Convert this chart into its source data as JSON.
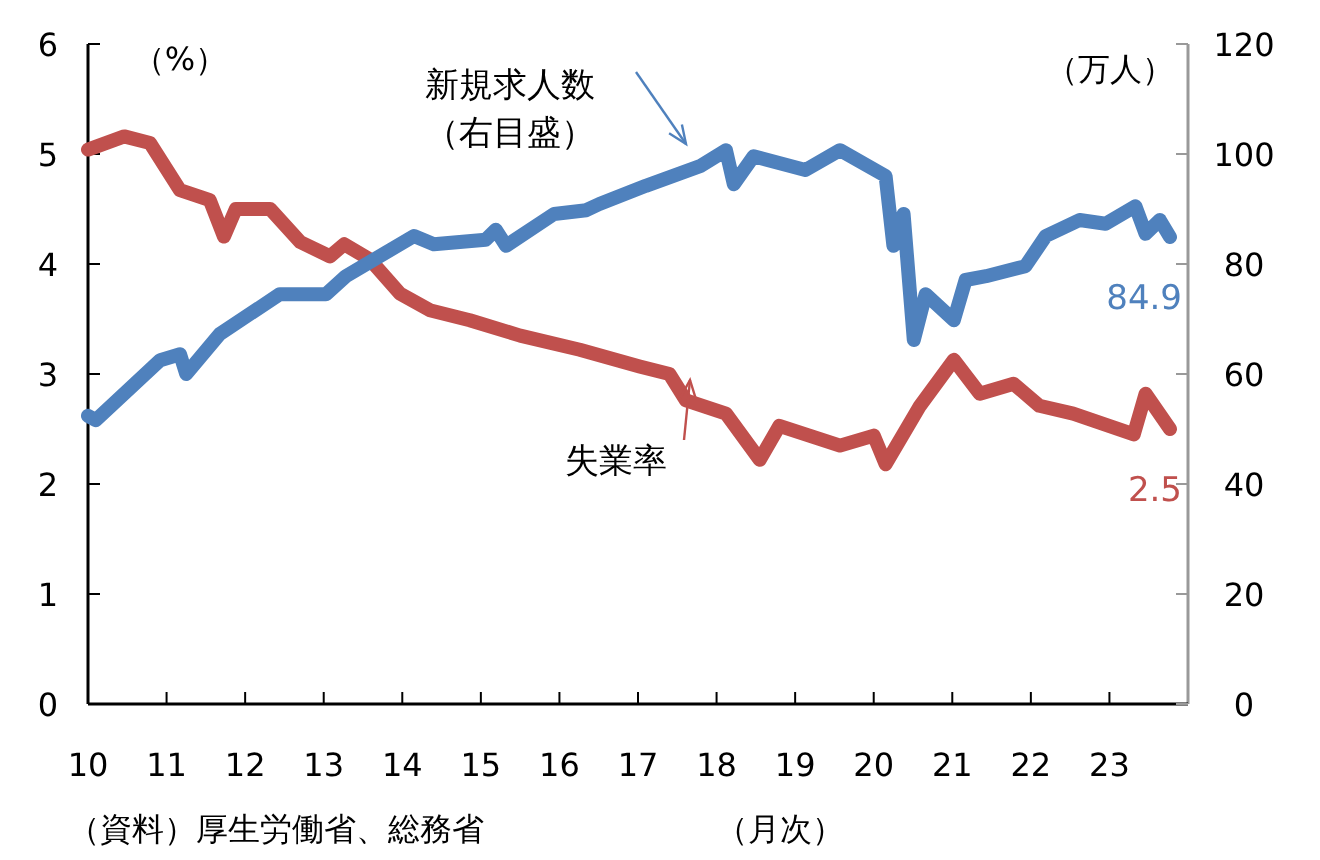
{
  "chart_data": {
    "type": "line",
    "ylabel": "（%）",
    "y2label": "（万人）",
    "grid": false,
    "marker": "none",
    "line_style": "solid",
    "xlim": [
      2010,
      2024
    ],
    "xticks": [
      {
        "value": 2010,
        "label": "10"
      },
      {
        "value": 2011,
        "label": "11"
      },
      {
        "value": 2012,
        "label": "12"
      },
      {
        "value": 2013,
        "label": "13"
      },
      {
        "value": 2014,
        "label": "14"
      },
      {
        "value": 2015,
        "label": "15"
      },
      {
        "value": 2016,
        "label": "16"
      },
      {
        "value": 2017,
        "label": "17"
      },
      {
        "value": 2018,
        "label": "18"
      },
      {
        "value": 2019,
        "label": "19"
      },
      {
        "value": 2020,
        "label": "20"
      },
      {
        "value": 2021,
        "label": "21"
      },
      {
        "value": 2022,
        "label": "22"
      },
      {
        "value": 2023,
        "label": "23"
      }
    ],
    "ylim": [
      0,
      6
    ],
    "yticks": [
      0,
      1,
      2,
      3,
      4,
      5,
      6
    ],
    "y2lim": [
      0,
      120
    ],
    "y2ticks": [
      0,
      20,
      40,
      60,
      80,
      100,
      120
    ],
    "series": [
      {
        "name": "失業率",
        "color": "#c0504d",
        "x": [
          2010.0,
          2010.46,
          2010.79,
          2011.17,
          2011.55,
          2011.73,
          2011.88,
          2012.32,
          2012.7,
          2013.08,
          2013.26,
          2013.59,
          2013.97,
          2014.35,
          2014.86,
          2015.5,
          2016.26,
          2017.02,
          2017.4,
          2017.61,
          2018.12,
          2018.55,
          2018.8,
          2019.57,
          2020.0,
          2020.15,
          2020.59,
          2021.02,
          2021.35,
          2021.78,
          2022.11,
          2022.54,
          2023.31,
          2023.46,
          2023.77
        ],
        "values": [
          5.04,
          5.16,
          5.1,
          4.67,
          4.58,
          4.25,
          4.5,
          4.5,
          4.2,
          4.07,
          4.18,
          4.04,
          3.73,
          3.58,
          3.49,
          3.35,
          3.22,
          3.07,
          3.0,
          2.76,
          2.64,
          2.22,
          2.53,
          2.35,
          2.44,
          2.18,
          2.71,
          3.13,
          2.82,
          2.91,
          2.71,
          2.64,
          2.45,
          2.82,
          2.5
        ],
        "value_labels": [
          null,
          null,
          null,
          null,
          null,
          null,
          null,
          null,
          null,
          null,
          null,
          null,
          null,
          null,
          null,
          null,
          null,
          null,
          null,
          null,
          null,
          null,
          null,
          null,
          null,
          null,
          null,
          null,
          null,
          null,
          null,
          null,
          null,
          null,
          "2.5"
        ]
      },
      {
        "name": "新規求人数（右目盛）",
        "axis": "y2",
        "color": "#4f81bd",
        "x": [
          2010.0,
          2010.1,
          2010.92,
          2011.17,
          2011.25,
          2011.68,
          2012.44,
          2013.03,
          2013.28,
          2014.15,
          2014.4,
          2015.06,
          2015.19,
          2015.32,
          2015.93,
          2016.34,
          2016.51,
          2017.1,
          2017.79,
          2018.12,
          2018.22,
          2018.47,
          2019.13,
          2019.57,
          2020.15,
          2020.25,
          2020.38,
          2020.51,
          2020.66,
          2021.02,
          2021.17,
          2021.43,
          2021.93,
          2022.19,
          2022.62,
          2022.95,
          2023.33,
          2023.46,
          2023.64,
          2023.77
        ],
        "values": [
          52.4,
          51.6,
          62.5,
          63.6,
          60,
          67.3,
          74.5,
          74.5,
          77.8,
          85.1,
          83.6,
          84.4,
          86.2,
          83.3,
          89.1,
          89.8,
          90.9,
          94.2,
          97.8,
          100.7,
          94.5,
          99.6,
          97.1,
          100.7,
          96,
          83.3,
          89.1,
          66.2,
          74.5,
          69.8,
          77.1,
          77.8,
          79.6,
          85.1,
          88,
          87.3,
          90.5,
          85.5,
          88,
          84.9
        ],
        "value_labels": [
          null,
          null,
          null,
          null,
          null,
          null,
          null,
          null,
          null,
          null,
          null,
          null,
          null,
          null,
          null,
          null,
          null,
          null,
          null,
          null,
          null,
          null,
          null,
          null,
          null,
          null,
          null,
          null,
          null,
          null,
          null,
          null,
          null,
          null,
          null,
          null,
          null,
          null,
          null,
          "84.9"
        ]
      }
    ],
    "annotations": [
      "（資料）厚生労働省、総務省",
      "（月次）"
    ]
  }
}
